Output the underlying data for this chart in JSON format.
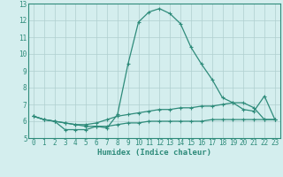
{
  "xlabel": "Humidex (Indice chaleur)",
  "x_values": [
    0,
    1,
    2,
    3,
    4,
    5,
    6,
    7,
    8,
    9,
    10,
    11,
    12,
    13,
    14,
    15,
    16,
    17,
    18,
    19,
    20,
    21,
    22,
    23
  ],
  "line1_y": [
    6.3,
    6.1,
    6.0,
    5.5,
    5.5,
    5.5,
    5.7,
    5.6,
    6.4,
    9.4,
    11.9,
    12.5,
    12.7,
    12.4,
    11.8,
    10.4,
    9.4,
    8.5,
    7.4,
    7.1,
    6.7,
    6.6,
    7.5,
    6.1
  ],
  "line2_y": [
    6.3,
    6.1,
    6.0,
    5.9,
    5.8,
    5.8,
    5.9,
    6.1,
    6.3,
    6.4,
    6.5,
    6.6,
    6.7,
    6.7,
    6.8,
    6.8,
    6.9,
    6.9,
    7.0,
    7.1,
    7.1,
    6.8,
    6.1,
    6.1
  ],
  "line3_y": [
    6.3,
    6.1,
    6.0,
    5.9,
    5.8,
    5.7,
    5.7,
    5.7,
    5.8,
    5.9,
    5.9,
    6.0,
    6.0,
    6.0,
    6.0,
    6.0,
    6.0,
    6.1,
    6.1,
    6.1,
    6.1,
    6.1,
    6.1,
    6.1
  ],
  "line_color": "#2e8b7a",
  "bg_color": "#d4eeee",
  "grid_color": "#b0cfcf",
  "ylim": [
    5,
    13
  ],
  "xlim": [
    -0.5,
    23.5
  ],
  "yticks": [
    5,
    6,
    7,
    8,
    9,
    10,
    11,
    12,
    13
  ],
  "xticks": [
    0,
    1,
    2,
    3,
    4,
    5,
    6,
    7,
    8,
    9,
    10,
    11,
    12,
    13,
    14,
    15,
    16,
    17,
    18,
    19,
    20,
    21,
    22,
    23
  ],
  "xlabel_fontsize": 6.5,
  "tick_fontsize": 5.5,
  "line_width": 0.9,
  "marker_size": 3.5
}
